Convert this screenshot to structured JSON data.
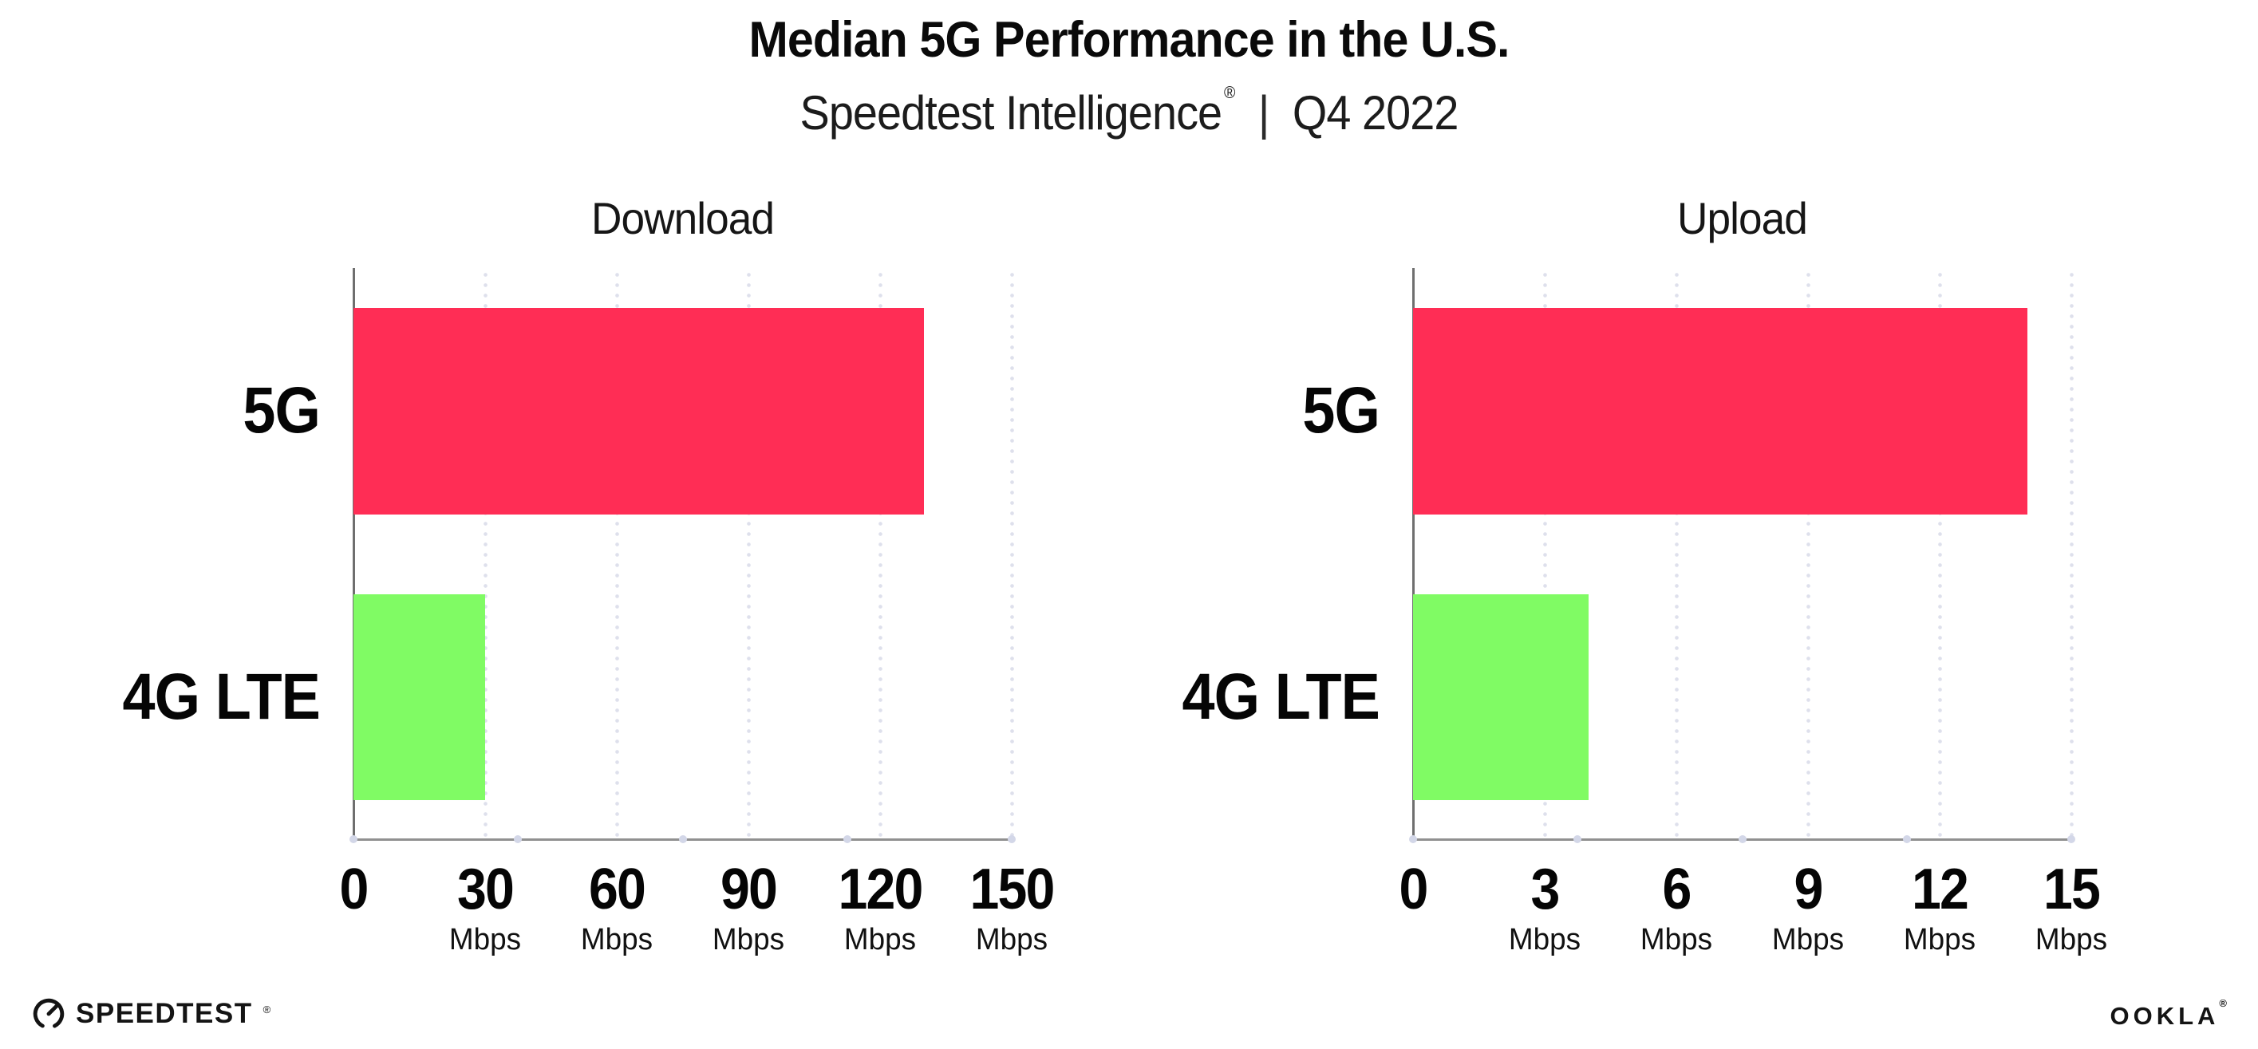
{
  "header": {
    "title": "Median 5G Performance in the U.S.",
    "subtitle": {
      "brand": "Speedtest Intelligence",
      "registered_mark": "®",
      "divider": "|",
      "period": "Q4 2022"
    }
  },
  "chart_data": [
    {
      "type": "bar",
      "orientation": "horizontal",
      "title": "Download",
      "categories": [
        "5G",
        "4G LTE"
      ],
      "values": [
        130,
        30
      ],
      "unit": "Mbps",
      "xlim": [
        0,
        150
      ],
      "xticks": [
        0,
        30,
        60,
        90,
        120,
        150
      ],
      "bar_colors": {
        "5G": "#FF2D55",
        "4G LTE": "#80FB64"
      },
      "grid": "dotted-vertical",
      "legend": "none"
    },
    {
      "type": "bar",
      "orientation": "horizontal",
      "title": "Upload",
      "categories": [
        "5G",
        "4G LTE"
      ],
      "values": [
        14,
        4
      ],
      "unit": "Mbps",
      "xlim": [
        0,
        15
      ],
      "xticks": [
        0,
        3,
        6,
        9,
        12,
        15
      ],
      "bar_colors": {
        "5G": "#FF2D55",
        "4G LTE": "#80FB64"
      },
      "grid": "dotted-vertical",
      "legend": "none"
    }
  ],
  "footer": {
    "speedtest_logo_text": "SPEEDTEST",
    "speedtest_mark": "®",
    "ookla_logo_text": "OOKLA",
    "ookla_mark": "®"
  },
  "style": {
    "bar_red": "#FF2D55",
    "bar_green": "#80FB64",
    "gridline_color": "#DEE0EC",
    "axis_color": "#909090",
    "text_color": "#0B0B0B"
  }
}
